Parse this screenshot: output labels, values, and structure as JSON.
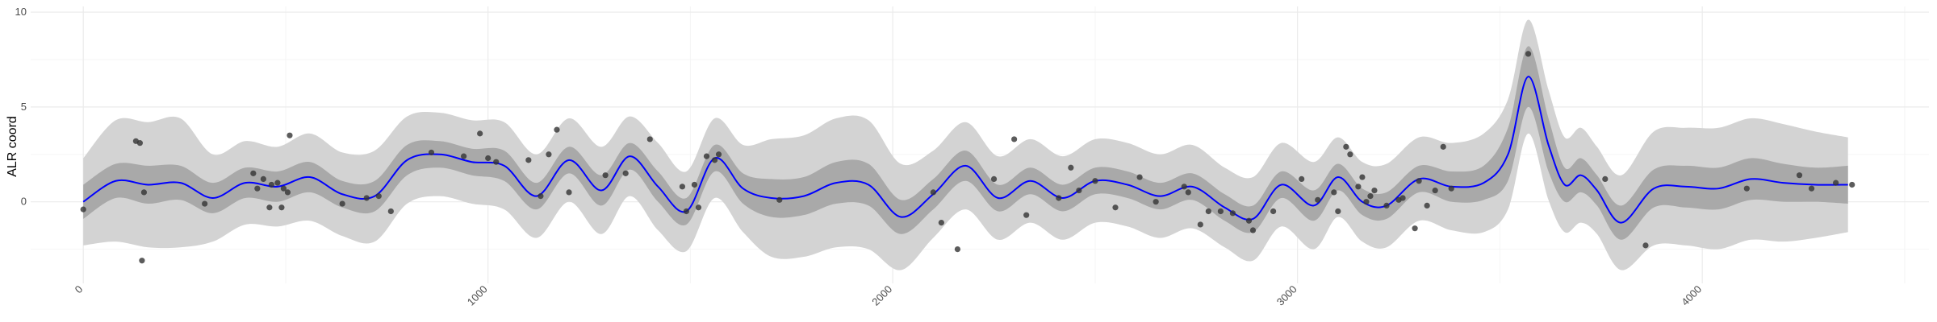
{
  "chart_data": {
    "type": "line",
    "title": "",
    "xlabel": "",
    "ylabel": "ALR coord",
    "xlim": [
      -130,
      4560
    ],
    "ylim": [
      -4.3,
      10.3
    ],
    "x_ticks": [
      0,
      1000,
      2000,
      3000,
      4000
    ],
    "x_tick_labels": [
      "0",
      "1000",
      "2000",
      "3000",
      "4000"
    ],
    "y_ticks": [
      0,
      5,
      10
    ],
    "y_tick_labels": [
      "0",
      "5",
      "10"
    ],
    "grid": true,
    "legend": "none",
    "colors": {
      "mean_line": "#0000ff",
      "band_outer": "#d3d3d3",
      "band_inner": "#a9a9a9",
      "points": "#333333",
      "grid_major": "#ebebeb",
      "grid_minor": "#f5f5f5"
    },
    "mean": {
      "x": [
        0,
        80,
        160,
        240,
        320,
        400,
        480,
        560,
        640,
        720,
        800,
        880,
        960,
        1040,
        1120,
        1200,
        1280,
        1350,
        1420,
        1490,
        1560,
        1630,
        1700,
        1780,
        1860,
        1940,
        2020,
        2100,
        2180,
        2260,
        2340,
        2420,
        2500,
        2580,
        2660,
        2740,
        2820,
        2890,
        2960,
        3040,
        3100,
        3160,
        3220,
        3300,
        3380,
        3460,
        3520,
        3570,
        3620,
        3660,
        3700,
        3740,
        3800,
        3880,
        3960,
        4040,
        4120,
        4200,
        4280,
        4360
      ],
      "y": [
        0.0,
        1.1,
        0.9,
        1.0,
        0.2,
        1.0,
        0.8,
        1.3,
        0.4,
        0.3,
        2.2,
        2.5,
        2.1,
        1.9,
        0.3,
        2.2,
        0.6,
        2.4,
        0.8,
        -0.5,
        2.3,
        0.7,
        0.2,
        0.3,
        1.0,
        0.9,
        -0.8,
        0.4,
        1.9,
        0.2,
        1.1,
        0.2,
        1.1,
        0.9,
        0.3,
        0.8,
        -0.3,
        -0.9,
        0.9,
        -0.2,
        1.3,
        0.0,
        -0.2,
        1.2,
        0.8,
        1.0,
        2.5,
        6.6,
        3.0,
        0.9,
        1.4,
        0.6,
        -1.1,
        0.7,
        0.8,
        0.7,
        1.2,
        1.0,
        0.9,
        0.9
      ],
      "inner_half_width": [
        0.9,
        0.9,
        1.0,
        0.9,
        0.8,
        0.8,
        0.8,
        0.8,
        0.7,
        0.8,
        0.8,
        0.7,
        0.7,
        0.8,
        0.7,
        0.7,
        0.8,
        0.7,
        0.8,
        0.7,
        0.7,
        0.8,
        1.0,
        1.0,
        1.1,
        1.1,
        0.9,
        0.8,
        0.8,
        0.7,
        0.7,
        0.7,
        0.7,
        0.7,
        0.7,
        0.7,
        0.7,
        0.7,
        0.7,
        0.8,
        0.7,
        0.7,
        0.7,
        0.7,
        0.8,
        0.9,
        1.4,
        1.6,
        1.4,
        0.9,
        0.9,
        0.8,
        0.9,
        1.0,
        1.1,
        1.1,
        1.1,
        1.0,
        0.9,
        1.0
      ],
      "outer_half_width": [
        2.3,
        3.2,
        3.3,
        3.4,
        2.3,
        2.2,
        2.1,
        2.3,
        2.2,
        2.4,
        2.3,
        2.2,
        2.2,
        2.3,
        2.2,
        2.2,
        2.3,
        2.1,
        2.3,
        2.1,
        2.1,
        2.3,
        3.1,
        3.2,
        3.4,
        3.4,
        2.8,
        2.3,
        2.3,
        2.2,
        2.2,
        2.2,
        2.2,
        2.2,
        2.2,
        2.2,
        2.1,
        2.2,
        2.2,
        2.3,
        2.1,
        2.1,
        2.2,
        2.2,
        2.3,
        2.6,
        2.9,
        3.0,
        2.9,
        2.5,
        2.5,
        2.3,
        2.5,
        3.0,
        3.1,
        3.2,
        3.2,
        3.1,
        2.8,
        2.5
      ]
    },
    "points": {
      "x": [
        0,
        130,
        145,
        140,
        150,
        300,
        420,
        430,
        445,
        460,
        465,
        480,
        490,
        495,
        505,
        510,
        640,
        700,
        730,
        760,
        860,
        940,
        980,
        1000,
        1020,
        1100,
        1130,
        1150,
        1170,
        1200,
        1290,
        1340,
        1400,
        1480,
        1490,
        1510,
        1520,
        1540,
        1560,
        1570,
        1720,
        2100,
        2120,
        2160,
        2250,
        2300,
        2330,
        2410,
        2440,
        2460,
        2500,
        2550,
        2610,
        2650,
        2720,
        2730,
        2760,
        2780,
        2810,
        2840,
        2880,
        2890,
        2940,
        3010,
        3050,
        3090,
        3100,
        3120,
        3130,
        3150,
        3160,
        3170,
        3180,
        3190,
        3220,
        3250,
        3260,
        3290,
        3300,
        3320,
        3340,
        3360,
        3380,
        3570,
        3760,
        3860,
        4110,
        4240,
        4270,
        4330,
        4370
      ],
      "y": [
        -0.4,
        3.2,
        -3.1,
        3.1,
        0.5,
        -0.1,
        1.5,
        0.7,
        1.2,
        -0.3,
        0.9,
        1.0,
        -0.3,
        0.7,
        0.5,
        3.5,
        -0.1,
        0.2,
        0.3,
        -0.5,
        2.6,
        2.4,
        3.6,
        2.3,
        2.1,
        2.2,
        0.3,
        2.5,
        3.8,
        0.5,
        1.4,
        1.5,
        3.3,
        0.8,
        -0.5,
        0.9,
        -0.3,
        2.4,
        2.2,
        2.5,
        0.1,
        0.5,
        -1.1,
        -2.5,
        1.2,
        3.3,
        -0.7,
        0.2,
        1.8,
        0.6,
        1.1,
        -0.3,
        1.3,
        0.0,
        0.8,
        0.5,
        -1.2,
        -0.5,
        -0.5,
        -0.6,
        -1.0,
        -1.5,
        -0.5,
        1.2,
        0.1,
        0.5,
        -0.5,
        2.9,
        2.5,
        0.8,
        1.3,
        0.0,
        0.3,
        0.6,
        -0.2,
        0.1,
        0.2,
        -1.4,
        1.1,
        -0.2,
        0.6,
        2.9,
        0.7,
        7.8,
        1.2,
        -2.3,
        0.7,
        1.4,
        0.7,
        1.0,
        0.9
      ]
    }
  }
}
